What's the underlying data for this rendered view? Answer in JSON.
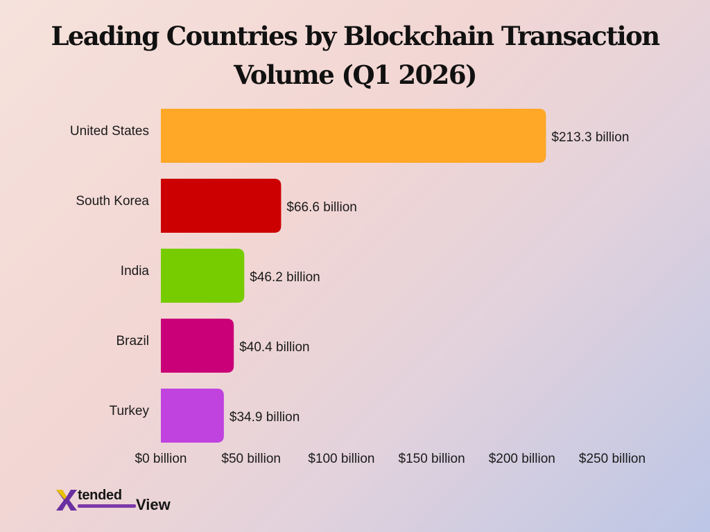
{
  "chart_data": {
    "type": "bar",
    "orientation": "horizontal",
    "title": "Leading Countries by Blockchain Transaction Volume (Q1 2026)",
    "title_lines": [
      "Leading Countries by Blockchain Transaction",
      "Volume (Q1 2026)"
    ],
    "categories": [
      "United States",
      "South Korea",
      "India",
      "Brazil",
      "Turkey"
    ],
    "values": [
      213.3,
      66.6,
      46.2,
      40.4,
      34.9
    ],
    "value_labels": [
      "$213.3 billion",
      "$66.6 billion",
      "$46.2 billion",
      "$40.4 billion",
      "$34.9 billion"
    ],
    "colors": [
      "#FFA726",
      "#CC0000",
      "#77CC00",
      "#C90077",
      "#C043E0"
    ],
    "xlim": [
      0,
      250
    ],
    "x_ticks": [
      0,
      50,
      100,
      150,
      200,
      250
    ],
    "x_tick_labels": [
      "$0 billion",
      "$50 billion",
      "$100 billion",
      "$150 billion",
      "$200 billion",
      "$250 billion"
    ],
    "grid": false,
    "legend": "none"
  },
  "brand": {
    "logo_mark": "X",
    "logo_text_1": "tended",
    "logo_text_2": "View",
    "accent": "#7C3AA8"
  }
}
